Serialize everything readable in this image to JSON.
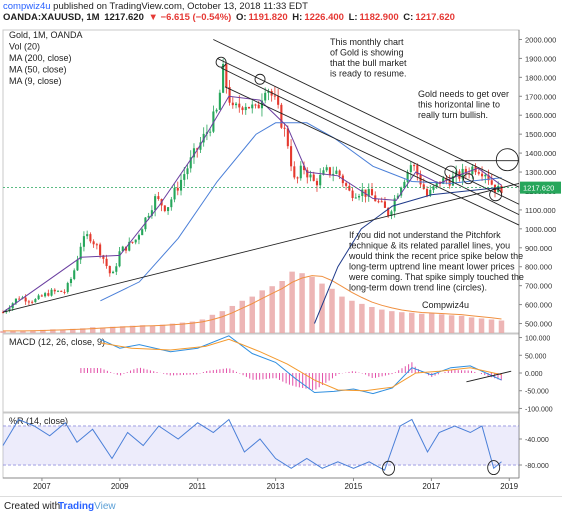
{
  "header": {
    "user": "compwiz4u",
    "published": " published on TradingView.com, October 13, 2018 11:33 EDT"
  },
  "ohlc": {
    "symbol": "OANDA:XAUUSD, 1M",
    "close": "1217.620",
    "change": "▼ −6.615 (−0.54%)",
    "open_label": "O:",
    "open": "1191.820",
    "high_label": "H:",
    "high": "1226.400",
    "low_label": "L:",
    "low": "1182.900",
    "close_label": "C:",
    "close2": "1217.620"
  },
  "legend": [
    "Gold, 1M, OANDA",
    "Vol (20)",
    "MA (200, close)",
    "MA (50, close)",
    "MA (9, close)"
  ],
  "annotations": {
    "top": [
      "This monthly chart",
      "of Gold is showing",
      "that the bull market",
      "is ready to resume."
    ],
    "right": [
      "Gold needs to get over",
      "this horizontal line to",
      "really turn bullish."
    ],
    "middle": [
      "If you did not understand the Pitchfork",
      "technique & its related parallel lines, you",
      "would think the recent price spike below the",
      "long-term uptrend line meant lower prices",
      "were coming. That spike simply touched the",
      "long-term down trend line (circles)."
    ],
    "credit": "Compwiz4u"
  },
  "macd_label": "MACD (12, 26, close, 9)",
  "wr_label": "%R (14, close)",
  "footer": {
    "created": "Created with",
    "brand_a": "Trading",
    "brand_b": "View"
  },
  "colors": {
    "up": "#26a65b",
    "down": "#e5392e",
    "ma200": "#1f3a8a",
    "ma50": "#4a7fd8",
    "ma9": "#6b3fa0",
    "vol": "#e8a3a3",
    "volma": "#f09040",
    "macd": "#2f8fe0",
    "signal": "#f39a2e",
    "hist": "#e24fa8",
    "wr": "#4a7fd8"
  },
  "chart_data": [
    {
      "type": "candlestick",
      "title": "Gold, 1M, OANDA",
      "ylim": [
        450,
        2050
      ],
      "y_ticks": [
        500,
        600,
        700,
        800,
        900,
        1000,
        1100,
        1200,
        1300,
        1400,
        1500,
        1600,
        1700,
        1800,
        1900,
        2000
      ],
      "y_tick_labels": [
        "500.000",
        "600.000",
        "700.000",
        "800.000",
        "900.000",
        "1000.000",
        "1100.000",
        "1200.000",
        "1300.000",
        "1400.000",
        "1500.000",
        "1600.000",
        "1700.000",
        "1800.000",
        "1900.000",
        "2000.000"
      ],
      "x_ticks": [
        2007,
        2009,
        2011,
        2013,
        2015,
        2017,
        2019
      ],
      "x_range": [
        2006.0,
        2019.25
      ],
      "current_price": 1217.62,
      "anchor_closes": [
        [
          2006.0,
          560
        ],
        [
          2006.4,
          640
        ],
        [
          2006.8,
          620
        ],
        [
          2007.2,
          665
        ],
        [
          2007.6,
          670
        ],
        [
          2007.8,
          760
        ],
        [
          2008.0,
          920
        ],
        [
          2008.2,
          970
        ],
        [
          2008.5,
          880
        ],
        [
          2008.8,
          740
        ],
        [
          2009.0,
          880
        ],
        [
          2009.4,
          940
        ],
        [
          2009.9,
          1160
        ],
        [
          2010.2,
          1110
        ],
        [
          2010.5,
          1230
        ],
        [
          2010.9,
          1390
        ],
        [
          2011.2,
          1500
        ],
        [
          2011.5,
          1620
        ],
        [
          2011.65,
          1830
        ],
        [
          2011.9,
          1620
        ],
        [
          2012.2,
          1670
        ],
        [
          2012.5,
          1620
        ],
        [
          2012.75,
          1770
        ],
        [
          2013.0,
          1660
        ],
        [
          2013.3,
          1470
        ],
        [
          2013.5,
          1230
        ],
        [
          2013.7,
          1330
        ],
        [
          2014.0,
          1240
        ],
        [
          2014.3,
          1300
        ],
        [
          2014.6,
          1300
        ],
        [
          2014.9,
          1190
        ],
        [
          2015.2,
          1200
        ],
        [
          2015.5,
          1170
        ],
        [
          2015.9,
          1080
        ],
        [
          2016.2,
          1230
        ],
        [
          2016.5,
          1350
        ],
        [
          2016.9,
          1170
        ],
        [
          2017.2,
          1250
        ],
        [
          2017.5,
          1260
        ],
        [
          2017.9,
          1300
        ],
        [
          2018.1,
          1330
        ],
        [
          2018.4,
          1300
        ],
        [
          2018.6,
          1220
        ],
        [
          2018.75,
          1200
        ],
        [
          2018.8,
          1218
        ]
      ],
      "ma200": [
        [
          2014.0,
          500
        ],
        [
          2014.6,
          800
        ],
        [
          2015.2,
          1000
        ],
        [
          2016.0,
          1120
        ],
        [
          2017.0,
          1180
        ],
        [
          2018.8,
          1220
        ]
      ],
      "ma50": [
        [
          2008.5,
          620
        ],
        [
          2009.5,
          720
        ],
        [
          2010.5,
          950
        ],
        [
          2011.5,
          1250
        ],
        [
          2012.5,
          1500
        ],
        [
          2013.0,
          1560
        ],
        [
          2013.8,
          1560
        ],
        [
          2014.5,
          1480
        ],
        [
          2015.5,
          1330
        ],
        [
          2016.5,
          1250
        ],
        [
          2017.5,
          1240
        ],
        [
          2018.8,
          1270
        ]
      ],
      "ma9": [
        [
          2006.0,
          560
        ],
        [
          2008.0,
          850
        ],
        [
          2009.0,
          860
        ],
        [
          2010.0,
          1120
        ],
        [
          2011.0,
          1420
        ],
        [
          2011.8,
          1700
        ],
        [
          2012.6,
          1680
        ],
        [
          2013.3,
          1540
        ],
        [
          2013.8,
          1300
        ],
        [
          2014.6,
          1280
        ],
        [
          2015.5,
          1160
        ],
        [
          2016.1,
          1150
        ],
        [
          2016.6,
          1300
        ],
        [
          2017.2,
          1240
        ],
        [
          2017.8,
          1290
        ],
        [
          2018.2,
          1320
        ],
        [
          2018.8,
          1230
        ]
      ],
      "volume_ylim": [
        0,
        1500
      ],
      "volume": [
        40,
        40,
        45,
        50,
        60,
        70,
        60,
        80,
        90,
        110,
        100,
        120,
        130,
        140,
        150,
        140,
        160,
        180,
        200,
        220,
        260,
        350,
        420,
        520,
        620,
        700,
        820,
        900,
        1000,
        1180,
        1150,
        1080,
        950,
        850,
        700,
        620,
        560,
        500,
        450,
        420,
        400,
        390,
        370,
        380,
        360,
        340,
        330,
        300,
        280,
        260,
        240
      ],
      "trend_lines": {
        "uptrend": [
          [
            2006.0,
            560
          ],
          [
            2019.25,
            1240
          ]
        ],
        "pitchfork_upper": [
          [
            2011.4,
            2000
          ],
          [
            2019.25,
            1220
          ]
        ],
        "pitchfork_middle": [
          [
            2011.5,
            1900
          ],
          [
            2019.25,
            1130
          ]
        ],
        "pitchfork_lower": [
          [
            2011.6,
            1850
          ],
          [
            2019.25,
            1075
          ]
        ],
        "median": [
          [
            2011.7,
            1750
          ],
          [
            2019.25,
            1020
          ]
        ],
        "horizontal": [
          [
            2017.6,
            1360
          ],
          [
            2019.25,
            1360
          ]
        ]
      }
    },
    {
      "type": "line",
      "title": "MACD (12, 26, close, 9)",
      "ylim": [
        -110,
        110
      ],
      "y_ticks": [
        100,
        50,
        0,
        -50,
        -100
      ],
      "y_tick_labels": [
        "100.000",
        "50.000",
        "0.000",
        "-50.000",
        "-100.000"
      ],
      "macd": [
        [
          2008.5,
          95
        ],
        [
          2009.0,
          70
        ],
        [
          2009.5,
          80
        ],
        [
          2010.3,
          60
        ],
        [
          2011.0,
          70
        ],
        [
          2011.8,
          105
        ],
        [
          2012.4,
          55
        ],
        [
          2013.0,
          30
        ],
        [
          2013.5,
          -15
        ],
        [
          2014.0,
          -55
        ],
        [
          2014.5,
          -52
        ],
        [
          2015.0,
          -45
        ],
        [
          2015.5,
          -58
        ],
        [
          2016.0,
          -42
        ],
        [
          2016.5,
          15
        ],
        [
          2017.0,
          -5
        ],
        [
          2017.5,
          15
        ],
        [
          2018.0,
          20
        ],
        [
          2018.8,
          -20
        ]
      ],
      "signal": [
        [
          2008.5,
          85
        ],
        [
          2009.3,
          70
        ],
        [
          2010.3,
          65
        ],
        [
          2011.2,
          75
        ],
        [
          2011.8,
          95
        ],
        [
          2012.6,
          60
        ],
        [
          2013.3,
          25
        ],
        [
          2014.0,
          -20
        ],
        [
          2014.6,
          -48
        ],
        [
          2015.3,
          -50
        ],
        [
          2016.0,
          -40
        ],
        [
          2016.6,
          0
        ],
        [
          2017.2,
          5
        ],
        [
          2018.0,
          15
        ],
        [
          2018.8,
          -5
        ]
      ],
      "histogram_ylim": [
        -110,
        110
      ]
    },
    {
      "type": "line",
      "title": "%R (14, close)",
      "ylim": [
        -100,
        0
      ],
      "y_ticks": [
        -40,
        -80
      ],
      "y_tick_labels": [
        "-40.000",
        "-80.000"
      ],
      "bands": [
        -20,
        -80
      ],
      "values": [
        [
          2006.0,
          -50
        ],
        [
          2006.4,
          -10
        ],
        [
          2006.8,
          -20
        ],
        [
          2007.2,
          -35
        ],
        [
          2007.6,
          -15
        ],
        [
          2007.9,
          -45
        ],
        [
          2008.3,
          -25
        ],
        [
          2008.8,
          -70
        ],
        [
          2009.2,
          -30
        ],
        [
          2009.6,
          -50
        ],
        [
          2010.0,
          -20
        ],
        [
          2010.5,
          -40
        ],
        [
          2011.0,
          -15
        ],
        [
          2011.4,
          -30
        ],
        [
          2011.8,
          -10
        ],
        [
          2012.2,
          -60
        ],
        [
          2012.6,
          -40
        ],
        [
          2013.0,
          -70
        ],
        [
          2013.4,
          -85
        ],
        [
          2013.8,
          -70
        ],
        [
          2014.2,
          -85
        ],
        [
          2014.6,
          -75
        ],
        [
          2015.0,
          -85
        ],
        [
          2015.4,
          -75
        ],
        [
          2015.8,
          -88
        ],
        [
          2016.2,
          -20
        ],
        [
          2016.5,
          -10
        ],
        [
          2016.9,
          -60
        ],
        [
          2017.2,
          -30
        ],
        [
          2017.6,
          -20
        ],
        [
          2018.0,
          -30
        ],
        [
          2018.3,
          -20
        ],
        [
          2018.6,
          -85
        ],
        [
          2018.8,
          -75
        ]
      ]
    }
  ]
}
